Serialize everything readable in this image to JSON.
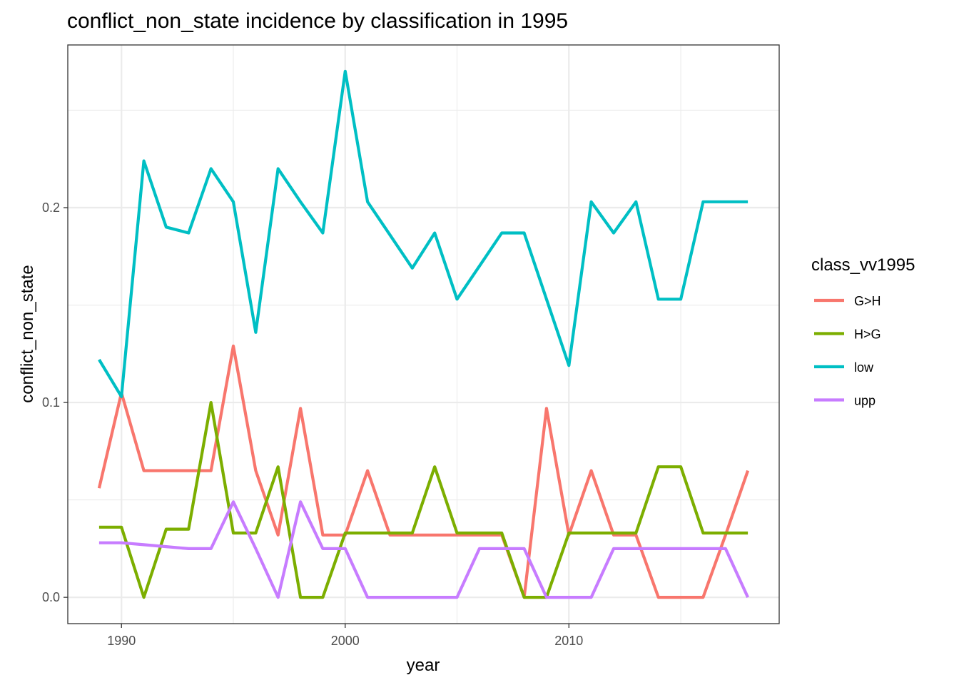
{
  "chart_data": {
    "type": "line",
    "title": "conflict_non_state  incidence by classification in 1995",
    "xlabel": "year",
    "ylabel": "conflict_non_state",
    "xlim": [
      1987.6,
      2019.4
    ],
    "ylim": [
      -0.0135,
      0.2835
    ],
    "x_ticks": [
      1990,
      2000,
      2010
    ],
    "x_tick_labels": [
      "1990",
      "2000",
      "2010"
    ],
    "x_minor_ticks": [
      1995,
      2005,
      2015
    ],
    "y_ticks": [
      0.0,
      0.1,
      0.2
    ],
    "y_tick_labels": [
      "0.0",
      "0.1",
      "0.2"
    ],
    "y_minor_ticks": [
      0.05,
      0.15,
      0.25
    ],
    "grid": true,
    "legend": {
      "title": "class_vv1995",
      "position": "right"
    },
    "x": [
      1989,
      1990,
      1991,
      1992,
      1993,
      1994,
      1995,
      1996,
      1997,
      1998,
      1999,
      2000,
      2001,
      2002,
      2003,
      2004,
      2005,
      2006,
      2007,
      2008,
      2009,
      2010,
      2011,
      2012,
      2013,
      2014,
      2015,
      2016,
      2017,
      2018
    ],
    "series": [
      {
        "name": "G>H",
        "color": "#F8766D",
        "values": [
          0.056,
          0.105,
          0.065,
          0.065,
          0.065,
          0.065,
          0.129,
          0.065,
          0.032,
          0.097,
          0.032,
          0.032,
          0.065,
          0.032,
          0.032,
          0.032,
          0.032,
          0.032,
          0.032,
          0.0,
          0.097,
          0.032,
          0.065,
          0.032,
          0.032,
          0.0,
          0.0,
          0.0,
          0.032,
          0.065
        ]
      },
      {
        "name": "H>G",
        "color": "#7CAE00",
        "values": [
          0.036,
          0.036,
          0.0,
          0.035,
          0.035,
          0.1,
          0.033,
          0.033,
          0.067,
          0.0,
          0.0,
          0.033,
          0.033,
          0.033,
          0.033,
          0.067,
          0.033,
          0.033,
          0.033,
          0.0,
          0.0,
          0.033,
          0.033,
          0.033,
          0.033,
          0.067,
          0.067,
          0.033,
          0.033,
          0.033
        ]
      },
      {
        "name": "low",
        "color": "#00BFC4",
        "values": [
          0.122,
          0.103,
          0.224,
          0.19,
          0.187,
          0.22,
          0.203,
          0.136,
          0.22,
          0.203,
          0.187,
          0.27,
          0.203,
          0.186,
          0.169,
          0.187,
          0.153,
          0.17,
          0.187,
          0.187,
          0.153,
          0.119,
          0.203,
          0.187,
          0.203,
          0.153,
          0.153,
          0.203,
          0.203,
          0.203
        ]
      },
      {
        "name": "upp",
        "color": "#C77CFF",
        "values": [
          0.028,
          0.028,
          0.027,
          0.026,
          0.025,
          0.025,
          0.049,
          0.025,
          0.0,
          0.049,
          0.025,
          0.025,
          0.0,
          0.0,
          0.0,
          0.0,
          0.0,
          0.025,
          0.025,
          0.025,
          0.0,
          0.0,
          0.0,
          0.025,
          0.025,
          0.025,
          0.025,
          0.025,
          0.025,
          0.0
        ]
      }
    ]
  }
}
